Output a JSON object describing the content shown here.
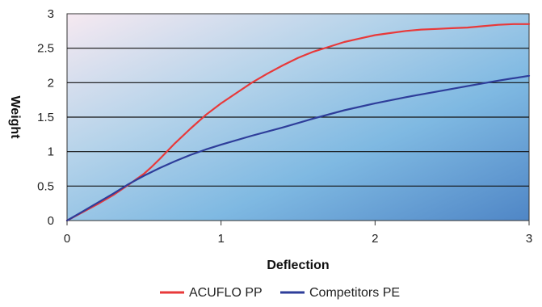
{
  "chart_data": {
    "type": "line",
    "title": "",
    "xlabel": "Deflection",
    "ylabel": "Weight",
    "xlim": [
      0,
      3
    ],
    "ylim": [
      0,
      3
    ],
    "x_ticks": [
      "0",
      "1",
      "2",
      "3"
    ],
    "y_ticks": [
      "0",
      "0.5",
      "1",
      "1.5",
      "2",
      "2.5",
      "3"
    ],
    "grid": "horizontal",
    "legend_position": "bottom",
    "series": [
      {
        "name": "ACUFLO PP",
        "color": "#e8393a",
        "x": [
          0,
          0.1,
          0.2,
          0.3,
          0.4,
          0.5,
          0.55,
          0.6,
          0.7,
          0.8,
          0.9,
          1.0,
          1.1,
          1.2,
          1.3,
          1.4,
          1.5,
          1.6,
          1.7,
          1.8,
          1.9,
          2.0,
          2.1,
          2.2,
          2.3,
          2.4,
          2.5,
          2.6,
          2.7,
          2.8,
          2.9,
          3.0
        ],
        "y": [
          0,
          0.12,
          0.24,
          0.37,
          0.52,
          0.68,
          0.78,
          0.89,
          1.12,
          1.33,
          1.53,
          1.7,
          1.85,
          2.0,
          2.13,
          2.25,
          2.36,
          2.45,
          2.52,
          2.59,
          2.64,
          2.69,
          2.72,
          2.75,
          2.77,
          2.78,
          2.79,
          2.8,
          2.82,
          2.84,
          2.85,
          2.85
        ]
      },
      {
        "name": "Competitors PE",
        "color": "#2e3d9a",
        "x": [
          0,
          0.1,
          0.2,
          0.3,
          0.4,
          0.5,
          0.6,
          0.7,
          0.8,
          0.9,
          1.0,
          1.2,
          1.4,
          1.6,
          1.8,
          2.0,
          2.2,
          2.4,
          2.6,
          2.8,
          3.0
        ],
        "y": [
          0,
          0.13,
          0.26,
          0.39,
          0.53,
          0.65,
          0.76,
          0.86,
          0.95,
          1.03,
          1.1,
          1.23,
          1.35,
          1.48,
          1.6,
          1.7,
          1.79,
          1.87,
          1.95,
          2.03,
          2.1
        ]
      }
    ]
  }
}
